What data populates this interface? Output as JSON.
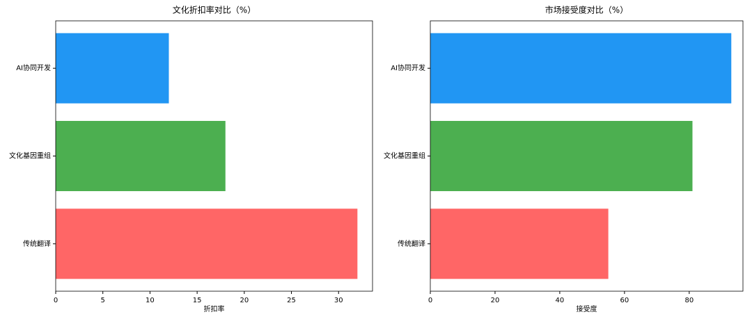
{
  "chart_data": [
    {
      "type": "barh",
      "title": "文化折扣率对比（%）",
      "xlabel": "折扣率",
      "categories": [
        "传统翻译",
        "文化基因重组",
        "AI协同开发"
      ],
      "values": [
        32,
        18,
        12
      ],
      "colors": [
        "#ff6666",
        "#4caf50",
        "#2196f3"
      ],
      "xlim": [
        0,
        33.6
      ],
      "xticks": [
        0,
        5,
        10,
        15,
        20,
        25,
        30
      ]
    },
    {
      "type": "barh",
      "title": "市场接受度对比（%）",
      "xlabel": "接受度",
      "categories": [
        "传统翻译",
        "文化基因重组",
        "AI协同开发"
      ],
      "values": [
        55,
        81,
        93
      ],
      "colors": [
        "#ff6666",
        "#4caf50",
        "#2196f3"
      ],
      "xlim": [
        0,
        96.6
      ],
      "xticks": [
        0,
        20,
        40,
        60,
        80
      ]
    }
  ]
}
